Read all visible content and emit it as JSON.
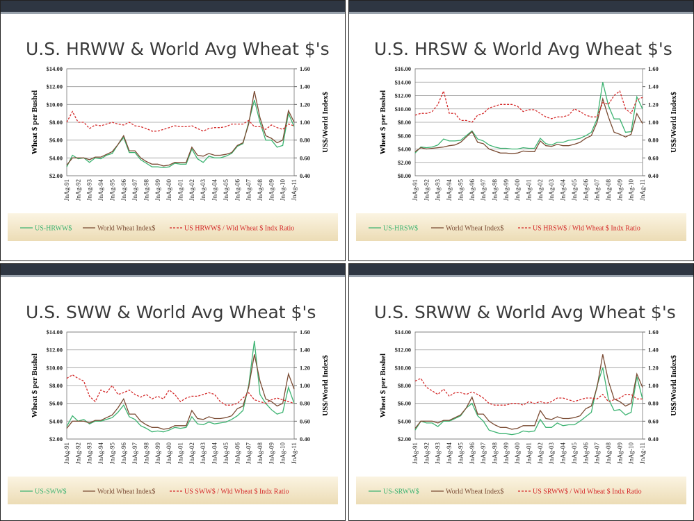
{
  "chart_data": [
    {
      "type": "line",
      "title": "U.S. HRWW & World Avg Wheat $'s",
      "ylabel": "Wheat $ per Bushel",
      "y2label": "US$/World Index$",
      "categories": [
        "JnAg-91",
        null,
        "JnAg-92",
        null,
        "JnAg-93",
        null,
        "JnAg-94",
        null,
        "JnAg-95",
        null,
        "JnAg-96",
        null,
        "JnAg-97",
        null,
        "JnAg-98",
        null,
        "JnAg-99",
        null,
        "JnAg-00",
        null,
        "JnAg-01",
        null,
        "JnAg-02",
        null,
        "JnAg-03",
        null,
        "JnAg-04",
        null,
        "JnAg-05",
        null,
        "JnAg-06",
        null,
        "JnAg-07",
        null,
        "JnAg-08",
        null,
        "JnAg-09",
        null,
        "JnAg-10",
        null,
        "JnAg-11"
      ],
      "ylim": [
        2,
        14
      ],
      "yticks": [
        {
          "value": 2,
          "label": "$2.00"
        },
        {
          "value": 4,
          "label": "$4.00"
        },
        {
          "value": 6,
          "label": "$6.00"
        },
        {
          "value": 8,
          "label": "$8.00"
        },
        {
          "value": 10,
          "label": "$10.00"
        },
        {
          "value": 12,
          "label": "$12.00"
        },
        {
          "value": 14,
          "label": "$14.00"
        }
      ],
      "y2lim": [
        0.4,
        1.6
      ],
      "y2ticks": [
        {
          "value": 0.4,
          "label": "0.40"
        },
        {
          "value": 0.6,
          "label": "0.60"
        },
        {
          "value": 0.8,
          "label": "0.80"
        },
        {
          "value": 1,
          "label": "1.00"
        },
        {
          "value": 1.2,
          "label": "1.20"
        },
        {
          "value": 1.4,
          "label": "1.40"
        },
        {
          "value": 1.6,
          "label": "1.60"
        }
      ],
      "grid": true,
      "series": [
        {
          "name": "US-HRWW$",
          "color": "#3cb371",
          "values": [
            3.0,
            4.3,
            3.9,
            4.0,
            3.5,
            4.0,
            3.9,
            4.3,
            4.5,
            5.5,
            6.3,
            4.6,
            4.6,
            3.8,
            3.4,
            3.0,
            3.0,
            2.9,
            3.0,
            3.4,
            3.3,
            3.3,
            5.0,
            3.9,
            3.5,
            4.2,
            4.0,
            4.0,
            4.2,
            4.5,
            5.3,
            5.6,
            8.0,
            10.5,
            8.0,
            6.0,
            6.0,
            5.2,
            5.4,
            9.0,
            7.5
          ]
        },
        {
          "name": "World Wheat Index$",
          "color": "#7a4b33",
          "values": [
            3.2,
            4.0,
            4.0,
            4.0,
            3.8,
            4.1,
            4.1,
            4.4,
            4.7,
            5.5,
            6.5,
            4.8,
            4.8,
            4.0,
            3.6,
            3.3,
            3.3,
            3.1,
            3.2,
            3.5,
            3.5,
            3.5,
            5.2,
            4.3,
            4.2,
            4.5,
            4.3,
            4.3,
            4.4,
            4.6,
            5.4,
            5.7,
            7.8,
            11.5,
            8.5,
            6.5,
            6.2,
            5.7,
            6.0,
            9.3,
            8.0
          ]
        },
        {
          "name": "US HRWW$ / Wld Wheat $ Indx Ratio",
          "color": "#d42a2a",
          "dashed": true,
          "axis": "y2",
          "values": [
            1.0,
            1.12,
            1.0,
            1.0,
            0.93,
            0.97,
            0.96,
            0.98,
            1.0,
            0.98,
            0.97,
            1.0,
            0.96,
            0.95,
            0.93,
            0.9,
            0.9,
            0.92,
            0.94,
            0.96,
            0.95,
            0.95,
            0.96,
            0.93,
            0.9,
            0.93,
            0.94,
            0.94,
            0.95,
            0.98,
            0.98,
            0.98,
            1.02,
            0.95,
            0.95,
            0.92,
            0.97,
            0.94,
            0.92,
            0.98,
            0.96
          ]
        }
      ]
    },
    {
      "type": "line",
      "title": "U.S. HRSW & World Avg Wheat $'s",
      "ylabel": "Wheat $ per Bushel",
      "y2label": "US$/World Index$",
      "categories": [
        "JnAg-91",
        null,
        "JnAg-92",
        null,
        "JnAg-93",
        null,
        "JnAg-94",
        null,
        "JnAg-95",
        null,
        "JnAg-96",
        null,
        "JnAg-97",
        null,
        "JnAg-98",
        null,
        "JnAg-99",
        null,
        "JnAg-00",
        null,
        "JnAg-01",
        null,
        "JnAg-02",
        null,
        "JnAg-03",
        null,
        "JnAg-04",
        null,
        "JnAg-05",
        null,
        "JnAg-06",
        null,
        "JnAg-07",
        null,
        "JnAg-08",
        null,
        "JnAg-09",
        null,
        "JnAg-10",
        null,
        "JnAg-11"
      ],
      "ylim": [
        0,
        16
      ],
      "yticks": [
        {
          "value": 0,
          "label": "$0.00"
        },
        {
          "value": 2,
          "label": "$2.00"
        },
        {
          "value": 4,
          "label": "$4.00"
        },
        {
          "value": 6,
          "label": "$6.00"
        },
        {
          "value": 8,
          "label": "$8.00"
        },
        {
          "value": 10,
          "label": "$10.00"
        },
        {
          "value": 12,
          "label": "$12.00"
        },
        {
          "value": 14,
          "label": "$14.00"
        },
        {
          "value": 16,
          "label": "$16.00"
        }
      ],
      "y2lim": [
        0.4,
        1.6
      ],
      "y2ticks": [
        {
          "value": 0.4,
          "label": "0.40"
        },
        {
          "value": 0.6,
          "label": "0.60"
        },
        {
          "value": 0.8,
          "label": "0.80"
        },
        {
          "value": 1,
          "label": "1.00"
        },
        {
          "value": 1.2,
          "label": "1.20"
        },
        {
          "value": 1.4,
          "label": "1.40"
        },
        {
          "value": 1.6,
          "label": "1.60"
        }
      ],
      "grid": true,
      "series": [
        {
          "name": "US-HRSW$",
          "color": "#3cb371",
          "values": [
            3.4,
            4.3,
            4.2,
            4.3,
            4.6,
            5.5,
            5.2,
            5.2,
            5.3,
            6.0,
            6.7,
            5.5,
            5.2,
            4.6,
            4.3,
            4.1,
            4.1,
            4.0,
            4.0,
            4.2,
            4.1,
            4.1,
            5.6,
            4.8,
            4.6,
            5.0,
            5.0,
            5.3,
            5.4,
            5.6,
            6.0,
            6.5,
            8.5,
            14.0,
            10.5,
            8.5,
            8.5,
            6.5,
            6.6,
            11.8,
            10.0
          ]
        },
        {
          "name": "World Wheat Index$",
          "color": "#7a4b33",
          "values": [
            3.6,
            4.2,
            4.0,
            4.1,
            4.2,
            4.3,
            4.5,
            4.6,
            5.0,
            5.8,
            6.6,
            5.0,
            4.8,
            4.0,
            3.7,
            3.4,
            3.4,
            3.3,
            3.4,
            3.7,
            3.6,
            3.6,
            5.2,
            4.5,
            4.4,
            4.7,
            4.5,
            4.5,
            4.7,
            5.0,
            5.6,
            6.0,
            8.0,
            11.5,
            8.8,
            6.5,
            6.2,
            5.8,
            6.2,
            9.3,
            7.8
          ]
        },
        {
          "name": "US HRSW$ / Wld Wheat $ Indx Ratio",
          "color": "#d42a2a",
          "dashed": true,
          "axis": "y2",
          "values": [
            1.08,
            1.1,
            1.1,
            1.12,
            1.2,
            1.35,
            1.1,
            1.1,
            1.02,
            1.02,
            1.0,
            1.08,
            1.1,
            1.16,
            1.18,
            1.2,
            1.2,
            1.2,
            1.18,
            1.12,
            1.14,
            1.14,
            1.1,
            1.06,
            1.04,
            1.06,
            1.06,
            1.08,
            1.15,
            1.12,
            1.08,
            1.06,
            1.06,
            1.22,
            1.2,
            1.3,
            1.35,
            1.15,
            1.1,
            1.25,
            1.28
          ]
        }
      ]
    },
    {
      "type": "line",
      "title": "U.S. SWW & World Avg Wheat $'s",
      "ylabel": "Wheat $ per Bushel",
      "y2label": "US$/World Index$",
      "categories": [
        "JnAg-91",
        null,
        "JnAg-92",
        null,
        "JnAg-93",
        null,
        "JnAg-94",
        null,
        "JnAg-95",
        null,
        "JnAg-96",
        null,
        "JnAg-97",
        null,
        "JnAg-98",
        null,
        "JnAg-99",
        null,
        "JnAg-00",
        null,
        "JnAg-01",
        null,
        "JnAg-02",
        null,
        "JnAg-03",
        null,
        "JnAg-04",
        null,
        "JnAg-05",
        null,
        "JnAg-06",
        null,
        "JnAg-07",
        null,
        "JnAg-08",
        null,
        "JnAg-09",
        null,
        "JnAg-10",
        null,
        "JnAg-11"
      ],
      "ylim": [
        2,
        14
      ],
      "yticks": [
        {
          "value": 2,
          "label": "$2.00"
        },
        {
          "value": 4,
          "label": "$4.00"
        },
        {
          "value": 6,
          "label": "$6.00"
        },
        {
          "value": 8,
          "label": "$8.00"
        },
        {
          "value": 10,
          "label": "$10.00"
        },
        {
          "value": 12,
          "label": "$12.00"
        },
        {
          "value": 14,
          "label": "$14.00"
        }
      ],
      "y2lim": [
        0.4,
        1.6
      ],
      "y2ticks": [
        {
          "value": 0.4,
          "label": "0.40"
        },
        {
          "value": 0.6,
          "label": "0.60"
        },
        {
          "value": 0.8,
          "label": "0.80"
        },
        {
          "value": 1,
          "label": "1.00"
        },
        {
          "value": 1.2,
          "label": "1.20"
        },
        {
          "value": 1.4,
          "label": "1.40"
        },
        {
          "value": 1.6,
          "label": "1.60"
        }
      ],
      "grid": true,
      "series": [
        {
          "name": "US-SWW$",
          "color": "#3cb371",
          "values": [
            3.4,
            4.6,
            4.0,
            4.2,
            3.7,
            4.0,
            4.0,
            4.2,
            4.4,
            5.0,
            5.8,
            4.5,
            4.2,
            3.5,
            3.2,
            2.8,
            2.9,
            2.8,
            3.0,
            3.3,
            3.2,
            3.3,
            4.5,
            3.7,
            3.6,
            3.9,
            3.7,
            3.8,
            3.9,
            4.2,
            4.6,
            5.2,
            8.0,
            13.0,
            7.0,
            6.0,
            5.3,
            4.8,
            5.0,
            7.8,
            6.0
          ]
        },
        {
          "name": "World Wheat Index$",
          "color": "#7a4b33",
          "values": [
            3.2,
            4.0,
            4.0,
            4.0,
            3.8,
            4.1,
            4.1,
            4.4,
            4.7,
            5.5,
            6.5,
            4.8,
            4.8,
            4.0,
            3.6,
            3.3,
            3.3,
            3.1,
            3.2,
            3.5,
            3.5,
            3.5,
            5.2,
            4.3,
            4.2,
            4.5,
            4.3,
            4.3,
            4.4,
            4.6,
            5.4,
            5.7,
            7.8,
            11.5,
            8.5,
            6.5,
            6.2,
            5.7,
            6.0,
            9.3,
            7.6
          ]
        },
        {
          "name": "US SWW$ / Wld Wheat $ Indx Ratio",
          "color": "#d42a2a",
          "dashed": true,
          "axis": "y2",
          "values": [
            1.08,
            1.12,
            1.08,
            1.05,
            0.88,
            0.82,
            0.95,
            0.92,
            1.0,
            0.9,
            0.92,
            0.95,
            0.9,
            0.87,
            0.9,
            0.85,
            0.88,
            0.85,
            0.95,
            0.9,
            0.82,
            0.86,
            0.88,
            0.88,
            0.9,
            0.92,
            0.9,
            0.82,
            0.78,
            0.78,
            0.8,
            0.86,
            0.92,
            0.84,
            0.82,
            0.8,
            0.84,
            0.86,
            0.84,
            0.82,
            0.8
          ]
        }
      ]
    },
    {
      "type": "line",
      "title": "U.S. SRWW & World Avg Wheat $'s",
      "ylabel": "Wheat $ per Bushel",
      "y2label": "US$/World Index$",
      "categories": [
        "JnAg-91",
        null,
        "JnAg-92",
        null,
        "JnAg-93",
        null,
        "JnAg-94",
        null,
        "JnAg-95",
        null,
        "JnAg-96",
        null,
        "JnAg-97",
        null,
        "JnAg-98",
        null,
        "JnAg-99",
        null,
        "JnAg-00",
        null,
        "JnAg-01",
        null,
        "JnAg-02",
        null,
        "JnAg-03",
        null,
        "JnAg-04",
        null,
        "JnAg-05",
        null,
        "JnAg-06",
        null,
        "JnAg-07",
        null,
        "JnAg-08",
        null,
        "JnAg-09",
        null,
        "JnAg-10",
        null,
        "JnAg-11"
      ],
      "ylim": [
        2,
        14
      ],
      "yticks": [
        {
          "value": 2,
          "label": "$2.00"
        },
        {
          "value": 4,
          "label": "$4.00"
        },
        {
          "value": 6,
          "label": "$6.00"
        },
        {
          "value": 8,
          "label": "$8.00"
        },
        {
          "value": 10,
          "label": "$10.00"
        },
        {
          "value": 12,
          "label": "$12.00"
        },
        {
          "value": 14,
          "label": "$14.00"
        }
      ],
      "y2lim": [
        0.4,
        1.6
      ],
      "y2ticks": [
        {
          "value": 0.4,
          "label": "0.40"
        },
        {
          "value": 0.6,
          "label": "0.60"
        },
        {
          "value": 0.8,
          "label": "0.80"
        },
        {
          "value": 1,
          "label": "1.00"
        },
        {
          "value": 1.2,
          "label": "1.20"
        },
        {
          "value": 1.4,
          "label": "1.40"
        },
        {
          "value": 1.6,
          "label": "1.60"
        }
      ],
      "grid": true,
      "series": [
        {
          "name": "US-SRWW$",
          "color": "#3cb371",
          "values": [
            3.0,
            4.0,
            3.8,
            3.8,
            3.4,
            4.0,
            4.0,
            4.3,
            4.6,
            5.5,
            6.0,
            4.6,
            4.0,
            3.0,
            2.8,
            2.6,
            2.6,
            2.5,
            2.6,
            2.9,
            2.8,
            2.9,
            4.2,
            3.3,
            3.3,
            3.8,
            3.5,
            3.6,
            3.6,
            4.0,
            4.5,
            5.0,
            8.0,
            10.0,
            6.5,
            5.2,
            5.3,
            4.7,
            5.0,
            9.0,
            6.5
          ]
        },
        {
          "name": "World Wheat Index$",
          "color": "#7a4b33",
          "values": [
            3.2,
            4.0,
            4.0,
            4.0,
            3.8,
            4.1,
            4.1,
            4.4,
            4.7,
            5.5,
            6.7,
            4.8,
            4.8,
            4.0,
            3.6,
            3.3,
            3.3,
            3.1,
            3.2,
            3.5,
            3.5,
            3.5,
            5.2,
            4.3,
            4.2,
            4.5,
            4.3,
            4.3,
            4.4,
            4.6,
            5.4,
            5.7,
            7.8,
            11.5,
            8.5,
            6.5,
            6.2,
            5.7,
            6.0,
            9.3,
            7.8
          ]
        },
        {
          "name": "US SRWW$ / Wld Wheat $ Indx Ratio",
          "color": "#d42a2a",
          "dashed": true,
          "axis": "y2",
          "values": [
            1.05,
            1.08,
            0.98,
            0.94,
            0.9,
            0.96,
            0.88,
            0.92,
            0.92,
            0.9,
            0.93,
            0.9,
            0.86,
            0.8,
            0.78,
            0.78,
            0.78,
            0.8,
            0.8,
            0.78,
            0.82,
            0.8,
            0.82,
            0.8,
            0.82,
            0.86,
            0.86,
            0.84,
            0.82,
            0.84,
            0.86,
            0.86,
            0.85,
            0.9,
            0.82,
            0.84,
            0.86,
            0.9,
            0.9,
            0.85,
            0.85
          ]
        }
      ]
    }
  ]
}
